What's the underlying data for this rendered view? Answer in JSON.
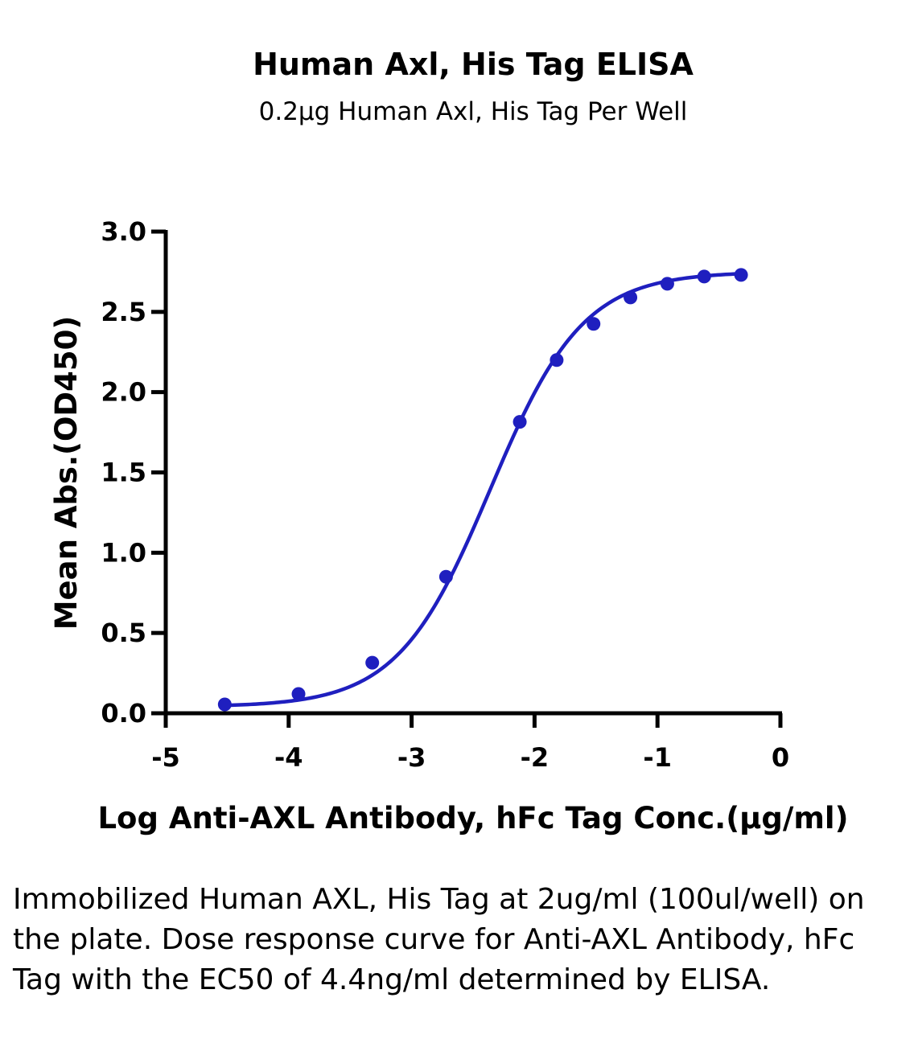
{
  "chart_data": {
    "type": "scatter",
    "title": "Human Axl, His Tag ELISA",
    "subtitle": "0.2μg Human Axl, His Tag Per Well",
    "xlabel": "Log Anti-AXL Antibody, hFc Tag Conc.(μg/ml)",
    "ylabel": "Mean Abs.(OD450)",
    "xlim": [
      -5,
      0
    ],
    "ylim": [
      0,
      3.0
    ],
    "xticks": [
      -5,
      -4,
      -3,
      -2,
      -1,
      0
    ],
    "xtick_labels": [
      "-5",
      "-4",
      "-3",
      "-2",
      "-1",
      "0"
    ],
    "yticks": [
      0,
      0.5,
      1.0,
      1.5,
      2.0,
      2.5,
      3.0
    ],
    "ytick_labels": [
      "0.0",
      "0.5",
      "1.0",
      "1.5",
      "2.0",
      "2.5",
      "3.0"
    ],
    "grid": false,
    "legend": "none",
    "series": [
      {
        "x": [
          -4.52,
          -3.92,
          -3.32,
          -2.72,
          -2.12,
          -1.82,
          -1.52,
          -1.22,
          -0.92,
          -0.62,
          -0.32
        ],
        "y": [
          0.055,
          0.12,
          0.315,
          0.85,
          1.815,
          2.2,
          2.425,
          2.59,
          2.675,
          2.72,
          2.73
        ],
        "color": "#1f1fbf",
        "fit": {
          "model": "4PL",
          "bottom": 0.04,
          "top": 2.75,
          "logEC50": -2.36,
          "hill": 1.15
        }
      }
    ]
  },
  "caption": "Immobilized Human AXL, His Tag at 2ug/ml (100ul/well) on the plate. Dose response curve for Anti-AXL Antibody, hFc Tag with the EC50 of 4.4ng/ml determined by ELISA."
}
